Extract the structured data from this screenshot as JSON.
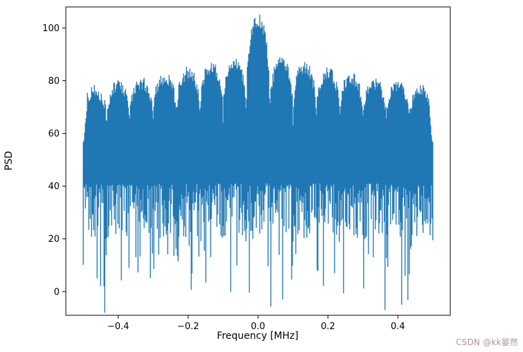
{
  "figure": {
    "background": "#ffffff",
    "watermark": {
      "text": "CSDN @kk晏然",
      "color": "#ab9595"
    }
  },
  "chart_data": {
    "type": "line",
    "title": "",
    "xlabel": "Frequency [MHz]",
    "ylabel": "PSD",
    "xlim": [
      -0.55,
      0.55
    ],
    "ylim": [
      -9,
      108
    ],
    "xticks": [
      -0.4,
      -0.2,
      0.0,
      0.2,
      0.4
    ],
    "xtick_labels": [
      "−0.4",
      "−0.2",
      "0.0",
      "0.2",
      "0.4"
    ],
    "yticks": [
      0,
      20,
      40,
      60,
      80,
      100
    ],
    "ytick_labels": [
      "0",
      "20",
      "40",
      "60",
      "80",
      "100"
    ],
    "line_color": "#1f77b4",
    "grid": false,
    "legend": null,
    "description": "Dense noisy power-spectral-density trace spanning -0.5 to 0.5 MHz: a comb of ~15 flat-topped spectral lobes (side lobes peaking near 75-87, tallest central lobe peaking ~103 at 0 MHz), with notches dipping to ~60 between lobes, a solid noisy mass below reaching down to ~25-45, sparse deep downward spikes to 0-15, and one extreme spike to ~-3 near +0.07 MHz.",
    "signal": {
      "x_range": [
        -0.5,
        0.5
      ],
      "lobe_spacing_mhz": 0.0667,
      "lobe_count": 15,
      "center_lobe_peak": 103,
      "side_lobe_peaks": [
        87,
        85,
        83,
        81,
        79,
        78,
        76
      ],
      "notch_level": 60,
      "noise_floor_top": 45,
      "noise_floor_typical_min": 26,
      "deep_spike": {
        "x": 0.07,
        "value": -3
      },
      "extra_deep_spikes": [
        {
          "x": -0.46,
          "value": 5
        },
        {
          "x": -0.44,
          "value": 2
        },
        {
          "x": -0.35,
          "value": 13
        },
        {
          "x": 0.33,
          "value": 13
        },
        {
          "x": 0.42,
          "value": 6
        }
      ],
      "seed": 20240611,
      "columns_hint": 505
    }
  }
}
